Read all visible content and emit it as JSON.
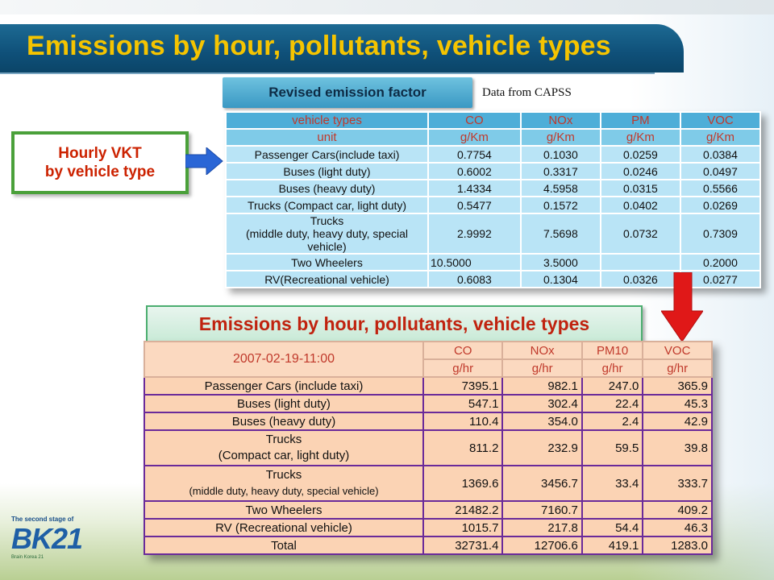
{
  "page": {
    "title": "Emissions by hour, pollutants, vehicle types"
  },
  "reference": {
    "tab_label": "Revised emission factor",
    "source_note": "Data from CAPSS",
    "input_box": {
      "line1": "Hourly VKT",
      "line2": "by vehicle type"
    },
    "table": {
      "header": [
        "vehicle types",
        "CO",
        "NOx",
        "PM",
        "VOC"
      ],
      "units": [
        "unit",
        "g/Km",
        "g/Km",
        "g/Km",
        "g/Km"
      ],
      "rows": [
        {
          "name": "Passenger Cars(include taxi)",
          "sub": "",
          "co": "0.7754",
          "nox": "0.1030",
          "pm": "0.0259",
          "voc": "0.0384"
        },
        {
          "name": "Buses (light duty)",
          "sub": "",
          "co": "0.6002",
          "nox": "0.3317",
          "pm": "0.0246",
          "voc": "0.0497"
        },
        {
          "name": "Buses (heavy duty)",
          "sub": "",
          "co": "1.4334",
          "nox": "4.5958",
          "pm": "0.0315",
          "voc": "0.5566"
        },
        {
          "name": "Trucks (Compact car, light duty)",
          "sub": "",
          "co": "0.5477",
          "nox": "0.1572",
          "pm": "0.0402",
          "voc": "0.0269"
        },
        {
          "name": "Trucks",
          "sub": "(middle duty, heavy duty, special vehicle)",
          "co": "2.9992",
          "nox": "7.5698",
          "pm": "0.0732",
          "voc": "0.7309"
        },
        {
          "name": "Two Wheelers",
          "sub": "",
          "co": "10.5000",
          "nox": "3.5000",
          "pm": "",
          "voc": "0.2000"
        },
        {
          "name": "RV(Recreational vehicle)",
          "sub": "",
          "co": "0.6083",
          "nox": "0.1304",
          "pm": "0.0326",
          "voc": "0.0277"
        }
      ]
    }
  },
  "result": {
    "tab_label": "Emissions by hour, pollutants, vehicle types",
    "table": {
      "timestamp": "2007-02-19-11:00",
      "header": [
        "CO",
        "NOx",
        "PM10",
        "VOC"
      ],
      "units": [
        "g/hr",
        "g/hr",
        "g/hr",
        "g/hr"
      ],
      "rows": [
        {
          "name": "Passenger Cars (include taxi)",
          "sub": "",
          "co": "7395.1",
          "nox": "982.1",
          "pm10": "247.0",
          "voc": "365.9"
        },
        {
          "name": "Buses (light duty)",
          "sub": "",
          "co": "547.1",
          "nox": "302.4",
          "pm10": "22.4",
          "voc": "45.3"
        },
        {
          "name": "Buses (heavy duty)",
          "sub": "",
          "co": "110.4",
          "nox": "354.0",
          "pm10": "2.4",
          "voc": "42.9"
        },
        {
          "name": "Trucks",
          "sub": "(Compact car, light duty)",
          "co": "811.2",
          "nox": "232.9",
          "pm10": "59.5",
          "voc": "39.8"
        },
        {
          "name": "Trucks",
          "sub": "(middle duty, heavy duty, special vehicle)",
          "co": "1369.6",
          "nox": "3456.7",
          "pm10": "33.4",
          "voc": "333.7"
        },
        {
          "name": "Two Wheelers",
          "sub": "",
          "co": "21482.2",
          "nox": "7160.7",
          "pm10": "",
          "voc": "409.2"
        },
        {
          "name": "RV (Recreational vehicle)",
          "sub": "",
          "co": "1015.7",
          "nox": "217.8",
          "pm10": "54.4",
          "voc": "46.3"
        }
      ],
      "total": {
        "name": "Total",
        "co": "32731.4",
        "nox": "12706.6",
        "pm10": "419.1",
        "voc": "1283.0"
      }
    }
  },
  "logo": {
    "tagline": "The second stage of",
    "name": "BK21",
    "subtitle": "Brain Korea 21"
  },
  "colors": {
    "title_text": "#f5c400",
    "title_band": "#0f5079",
    "accent_red": "#c0392b",
    "factor_table": "#b9e4f6",
    "result_table": "#fbd3b4",
    "result_border": "#6a2a9a",
    "arrow_blue": "#2a66d6",
    "arrow_red": "#e01818"
  }
}
